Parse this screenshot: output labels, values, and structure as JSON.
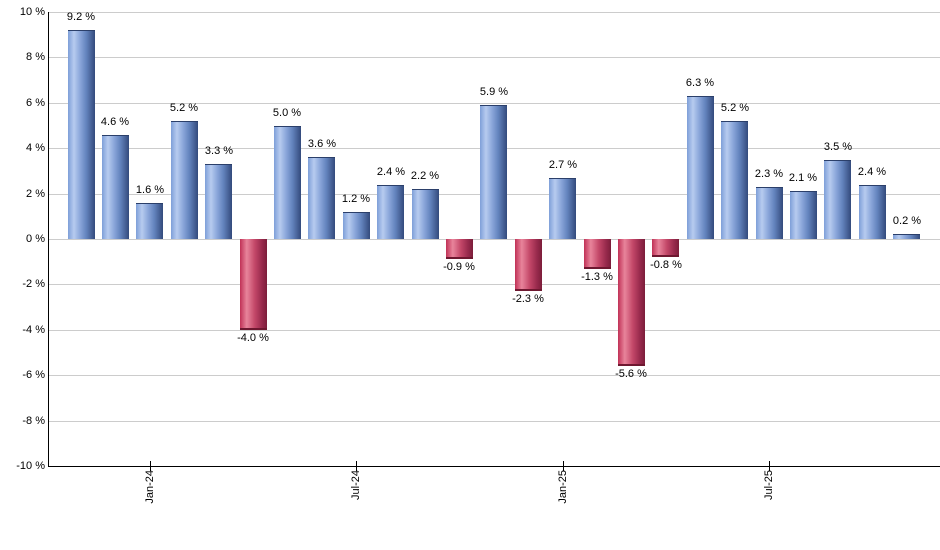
{
  "chart": {
    "background": "#ffffff",
    "grid_color": "#cccccc",
    "axis_color": "#000000",
    "label_color": "#000000",
    "positive_bar_colors": [
      "#7e9fd8",
      "#b7cbef",
      "#8aa6da",
      "#334a7c"
    ],
    "negative_bar_colors": [
      "#c03156",
      "#e8849b",
      "#c34768",
      "#7c1d3a"
    ]
  },
  "chart_data": {
    "type": "bar",
    "title": "",
    "xlabel": "",
    "ylabel": "",
    "unit": "%",
    "grid": true,
    "legend": "none",
    "ylim": [
      -10,
      10
    ],
    "y_step": 2,
    "values": [
      9.2,
      4.6,
      1.6,
      5.2,
      3.3,
      -4.0,
      5.0,
      3.6,
      1.2,
      2.4,
      2.2,
      -0.9,
      5.9,
      -2.3,
      2.7,
      -1.3,
      -5.6,
      -0.8,
      6.3,
      5.2,
      2.3,
      2.1,
      3.5,
      2.4,
      0.2
    ],
    "bar_labels": [
      "9.2 %",
      "4.6 %",
      "1.6 %",
      "5.2 %",
      "3.3 %",
      "-4.0 %",
      "5.0 %",
      "3.6 %",
      "1.2 %",
      "2.4 %",
      "2.2 %",
      "-0.9 %",
      "5.9 %",
      "-2.3 %",
      "2.7 %",
      "-1.3 %",
      "-5.6 %",
      "-0.8 %",
      "6.3 %",
      "5.2 %",
      "2.3 %",
      "2.1 %",
      "3.5 %",
      "2.4 %",
      "0.2 %"
    ],
    "y_axis": {
      "ticks": [
        {
          "value": 10,
          "label": "10 %"
        },
        {
          "value": 8,
          "label": "8 %"
        },
        {
          "value": 6,
          "label": "6 %"
        },
        {
          "value": 4,
          "label": "4 %"
        },
        {
          "value": 2,
          "label": "2 %"
        },
        {
          "value": 0,
          "label": "0 %"
        },
        {
          "value": -2,
          "label": "-2 %"
        },
        {
          "value": -4,
          "label": "-4 %"
        },
        {
          "value": -6,
          "label": "-6 %"
        },
        {
          "value": -8,
          "label": "-8 %"
        },
        {
          "value": -10,
          "label": "-10 %"
        }
      ]
    },
    "x_axis": {
      "ticks": [
        {
          "label": "Jan-24",
          "bar_index": 2
        },
        {
          "label": "Jul-24",
          "bar_index": 8
        },
        {
          "label": "Jan-25",
          "bar_index": 14
        },
        {
          "label": "Jul-25",
          "bar_index": 20
        }
      ]
    }
  }
}
